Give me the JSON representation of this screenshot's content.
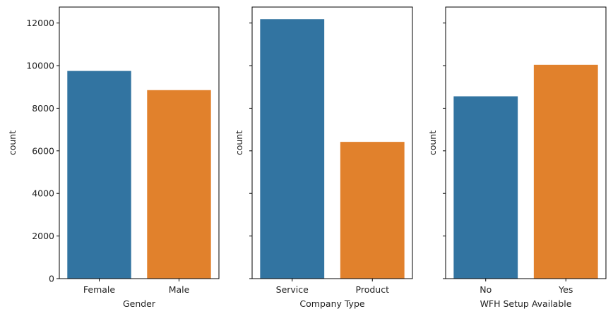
{
  "chart_data": [
    {
      "type": "bar",
      "categories": [
        "Female",
        "Male"
      ],
      "values": [
        9750,
        8850
      ],
      "colors": [
        "#3274a1",
        "#e1812c"
      ],
      "xlabel": "Gender",
      "ylabel": "count",
      "ylim": [
        0,
        12750
      ],
      "yticks": [
        0,
        2000,
        4000,
        6000,
        8000,
        10000,
        12000
      ],
      "show_yticklabels": true,
      "grid": false
    },
    {
      "type": "bar",
      "categories": [
        "Service",
        "Product"
      ],
      "values": [
        12180,
        6420
      ],
      "colors": [
        "#3274a1",
        "#e1812c"
      ],
      "xlabel": "Company Type",
      "ylabel": "count",
      "ylim": [
        0,
        12750
      ],
      "yticks": [
        0,
        2000,
        4000,
        6000,
        8000,
        10000,
        12000
      ],
      "show_yticklabels": false,
      "grid": false
    },
    {
      "type": "bar",
      "categories": [
        "No",
        "Yes"
      ],
      "values": [
        8560,
        10040
      ],
      "colors": [
        "#3274a1",
        "#e1812c"
      ],
      "xlabel": "WFH Setup Available",
      "ylabel": "count",
      "ylim": [
        0,
        12750
      ],
      "yticks": [
        0,
        2000,
        4000,
        6000,
        8000,
        10000,
        12000
      ],
      "show_yticklabels": false,
      "grid": false
    }
  ]
}
